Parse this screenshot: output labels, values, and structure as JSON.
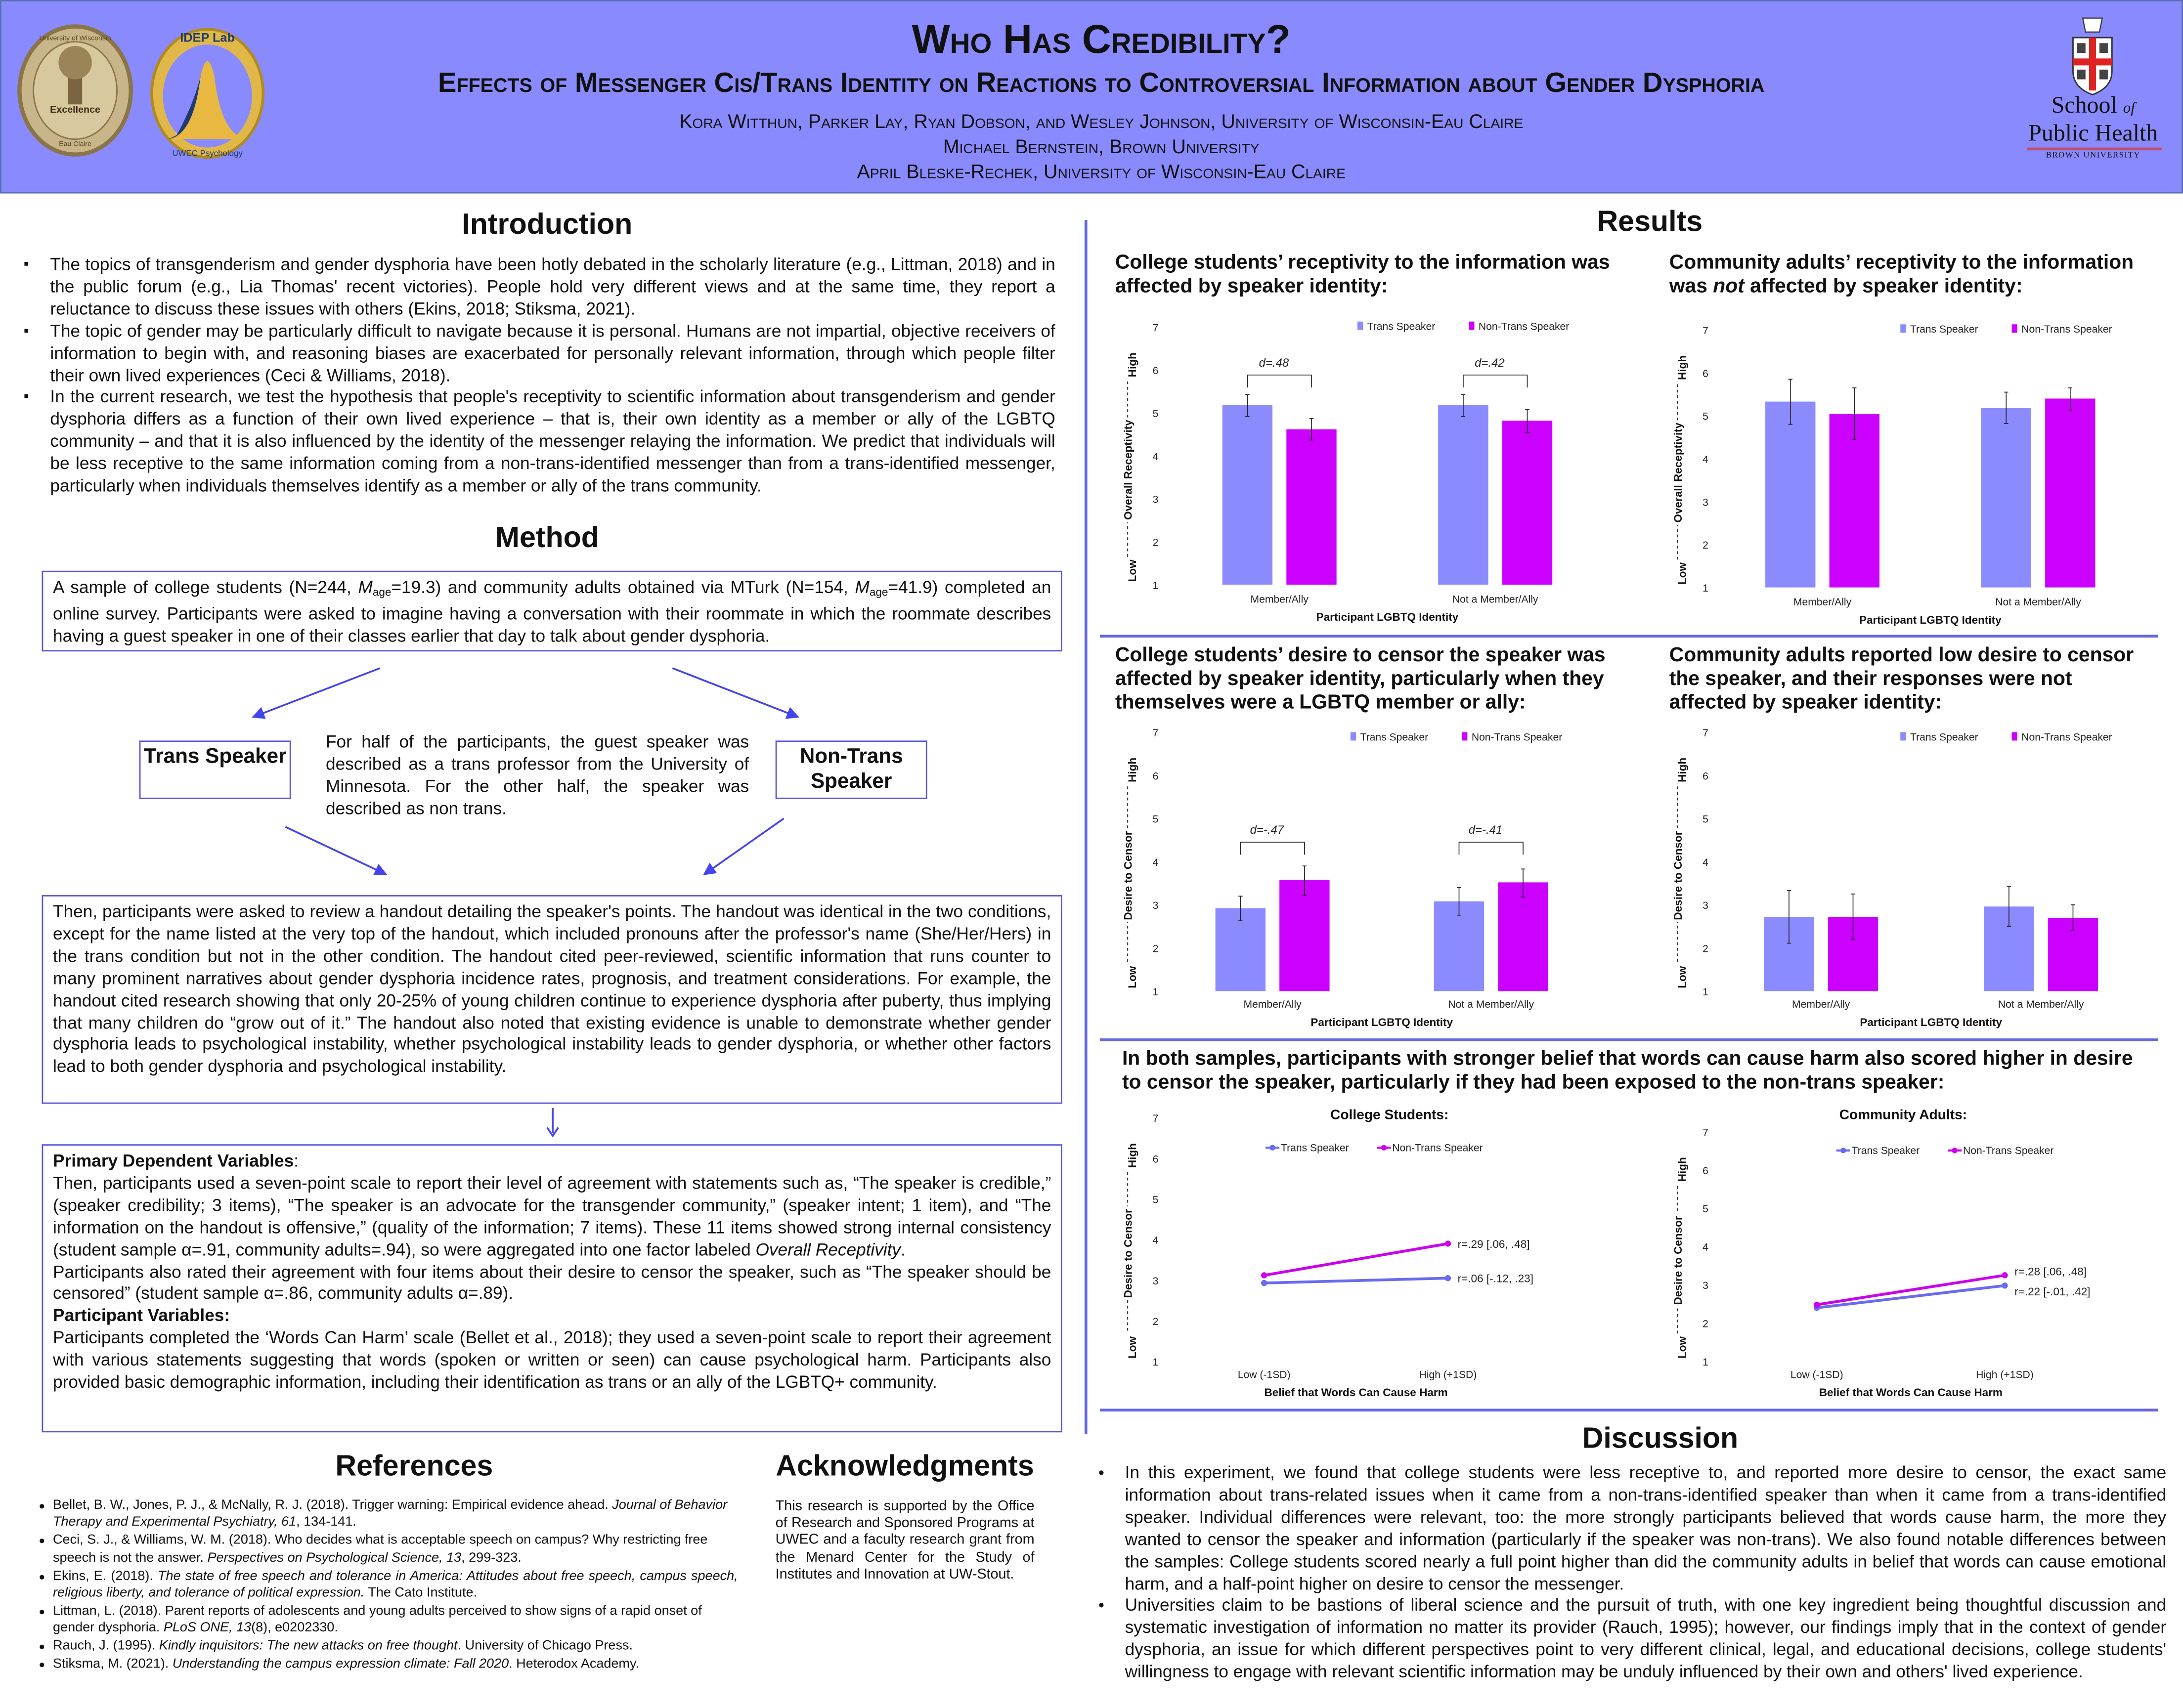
{
  "header": {
    "title": "Who Has Credibility?",
    "subtitle": "Effects of Messenger Cis/Trans Identity on Reactions to Controversial Information about Gender Dysphoria",
    "authors_line1": "Kora Witthun, Parker Lay, Ryan Dobson, and Wesley Johnson, University of Wisconsin-Eau Claire",
    "authors_line2": "Michael Bernstein, Brown University",
    "authors_line3": "April Bleske-Rechek, University of Wisconsin-Eau Claire",
    "logo_uwec": {
      "ring_text": "University of Wisconsin",
      "center_text": "Excellence",
      "bottom_text": "Eau Claire"
    },
    "logo_idep": {
      "top_text": "IDEP Lab",
      "bottom_text": "UWEC Psychology"
    },
    "logo_brown": {
      "school": "School",
      "of": "of",
      "public_health": "Public Health",
      "university": "BROWN UNIVERSITY"
    }
  },
  "introduction": {
    "heading": "Introduction",
    "bullets": [
      "The topics of transgenderism and gender dysphoria have been hotly debated in the scholarly literature (e.g., Littman, 2018) and in the public forum (e.g., Lia Thomas' recent victories). People hold very different views and at the same time, they report a reluctance to discuss these issues with others (Ekins, 2018; Stiksma, 2021).",
      "The topic of gender may be particularly difficult to navigate because it is personal. Humans are not impartial, objective receivers of information to begin with, and reasoning biases are exacerbated for personally relevant information, through which people filter their own lived experiences (Ceci & Williams, 2018).",
      "In the current research, we test the hypothesis that people's receptivity to scientific information about transgenderism and gender dysphoria differs as a function of their own lived experience – that is, their own identity as a member or ally of the LGBTQ community – and that it is also influenced by the identity of the messenger relaying the information. We predict that individuals will be less receptive to the same information coming from a non-trans-identified messenger than from a trans-identified messenger, particularly when individuals themselves identify as a member or ally of the trans community."
    ]
  },
  "method": {
    "heading": "Method",
    "box1": {
      "a": "A sample of college students (N=244, ",
      "m": "M",
      "age": "age",
      "b": "=19.3) and community adults obtained via MTurk (N=154, ",
      "c": "=41.9) completed an online survey. Participants were asked to imagine having a conversation with their roommate in which the roommate describes having a guest speaker in one of their classes earlier that day to talk about gender dysphoria."
    },
    "trans_speaker": "Trans Speaker",
    "nontrans_speaker": "Non-Trans Speaker",
    "condition_text": "For half of the participants, the guest speaker was described as a trans professor from the University of Minnesota. For the other half, the speaker was described as non trans.",
    "box2": "Then, participants were asked to review a handout detailing the speaker's points. The handout was identical in the two conditions, except for the name listed at the very top of the handout, which included pronouns after the professor's name (She/Her/Hers) in the trans condition but not in the other condition. The handout cited peer-reviewed, scientific information that runs counter to many prominent narratives about gender dysphoria incidence rates, prognosis, and treatment considerations. For example, the handout cited research showing that only 20-25% of young children continue to experience dysphoria after puberty, thus implying that many children do “grow out of it.” The handout also noted that existing evidence is unable to demonstrate whether gender dysphoria leads to psychological instability, whether psychological instability leads to gender dysphoria, or whether other factors lead to both gender dysphoria and psychological instability.",
    "box3": {
      "primary_heading": "Primary Dependent Variables",
      "colon": ":",
      "p1": "Then, participants used a seven-point scale to report their level of agreement with statements such as, “The speaker is credible,” (speaker credibility; 3 items), “The speaker is an advocate for the transgender community,” (speaker intent; 1 item), and “The information on the handout is offensive,” (quality of the information; 7 items). These 11 items showed strong internal consistency (student sample α=.91, community adults=.94), so were aggregated into one factor labeled ",
      "p1_italic": "Overall Receptivity",
      "p1_end": ".",
      "p2": "Participants also rated their agreement with four items about their desire to censor the speaker, such as “The speaker should be censored” (student sample α=.86, community adults α=.89).",
      "participant_heading": "Participant Variables:",
      "p3": "Participants  completed the ‘Words Can Harm’ scale (Bellet et al., 2018); they used a seven-point scale to report their agreement with various statements suggesting that words (spoken or written or seen) can cause psychological harm. Participants also provided basic demographic information, including their identification as trans or an ally of the LGBTQ+ community."
    }
  },
  "references": {
    "heading": "References",
    "items": [
      {
        "a": "Bellet, B. W., Jones, P. J., & McNally, R. J. (2018). Trigger warning: Empirical evidence ahead. ",
        "i": "Journal of Behavior Therapy and Experimental Psychiatry, 61",
        "b": ", 134-141."
      },
      {
        "a": "Ceci, S. J., & Williams, W. M. (2018). Who decides what is acceptable speech on campus? Why restricting free speech is not the answer. ",
        "i": "Perspectives on Psychological Science, 13",
        "b": ", 299-323."
      },
      {
        "a": "Ekins, E. (2018). ",
        "i": "The state of free speech and tolerance in America: Attitudes about free speech, campus speech, religious liberty, and tolerance of political expression.",
        "b": " The Cato Institute."
      },
      {
        "a": "Littman, L. (2018). Parent reports of adolescents and young adults perceived to show signs of a rapid onset of gender dysphoria. ",
        "i": "PLoS ONE, 13",
        "b": "(8), e0202330."
      },
      {
        "a": "Rauch, J. (1995). ",
        "i": "Kindly inquisitors: The new attacks on free thought",
        "b": ". University of Chicago Press."
      },
      {
        "a": "Stiksma, M. (2021). ",
        "i": "Understanding the campus expression climate: Fall 2020",
        "b": ". Heterodox Academy."
      }
    ]
  },
  "acknowledgments": {
    "heading": "Acknowledgments",
    "text": "This research is supported by the Office of Research and Sponsored Programs at UWEC and a faculty research grant from the Menard Center for the Study of Institutes and Innovation at UW-Stout."
  },
  "results": {
    "heading": "Results",
    "titles": [
      {
        "a": "College students’ receptivity to the information was affected by speaker identity:"
      },
      {
        "a": "Community adults’ receptivity to the information was ",
        "i": "not",
        "b": " affected by speaker identity:"
      },
      {
        "a": "College students’ desire to censor the speaker was affected by speaker identity, particularly when they themselves were a LGBTQ member or ally:"
      },
      {
        "a": "Community adults reported low desire to censor the speaker, and their responses were not affected by speaker identity:"
      },
      {
        "a": "In both samples, participants with stronger belief that words can cause harm also scored higher in desire to censor the speaker, particularly if they had been exposed to the non-trans speaker:"
      }
    ]
  },
  "discussion": {
    "heading": "Discussion",
    "bullets": [
      "In this experiment, we found that college students were less receptive to, and reported more desire to censor, the exact same information about trans-related issues when it came from a non-trans-identified speaker than when it came from a trans-identified speaker. Individual differences were relevant, too: the more strongly participants believed that words cause harm, the more they wanted to censor the speaker and information (particularly if the speaker was non-trans). We also found notable differences between the samples: College students scored nearly a full point higher than did the community adults in belief that words can cause emotional harm, and a half-point higher on desire to censor the messenger.",
      "Universities claim to be bastions of liberal science and the pursuit of truth, with one key ingredient being thoughtful discussion and systematic investigation of information no matter its provider (Rauch, 1995); however, our findings imply that in the context of gender dysphoria, an issue for which different perspectives point to very different clinical, legal, and educational decisions, college students' willingness to engage with relevant scientific information may be unduly influenced by their own and others' lived experience."
    ]
  },
  "colors": {
    "trans": "#8b8bff",
    "nontrans": "#cc00ff",
    "trans_line": "#6a6af0",
    "nontrans_line": "#cc00ee",
    "header_bg": "#8a8aff",
    "accent": "#6464e6"
  },
  "chart_data": [
    {
      "type": "bar",
      "title": "College students receptivity",
      "ylabel": "Overall Receptivity",
      "ylow": "Low",
      "yhigh": "High",
      "xlabel": "Participant LGBTQ Identity",
      "categories": [
        "Member/Ally",
        "Not a Member/Ally"
      ],
      "yticks": [
        "1",
        "2",
        "3",
        "4",
        "5",
        "6",
        "7"
      ],
      "ylim": [
        1,
        7
      ],
      "series": [
        {
          "name": "Trans Speaker",
          "values": [
            5.18,
            5.18
          ],
          "err_low": [
            4.92,
            4.92
          ],
          "err_high": [
            5.43,
            5.43
          ]
        },
        {
          "name": "Non-Trans Speaker",
          "values": [
            4.62,
            4.82
          ],
          "err_low": [
            4.37,
            4.54
          ],
          "err_high": [
            4.87,
            5.08
          ]
        }
      ],
      "annotations": [
        "d=.48",
        "d=.42"
      ]
    },
    {
      "type": "bar",
      "title": "Community adults receptivity",
      "ylabel": "Overall Receptivity",
      "ylow": "Low",
      "yhigh": "High",
      "xlabel": "Participant LGBTQ Identity",
      "categories": [
        "Member/Ally",
        "Not a Member/Ally"
      ],
      "yticks": [
        "1",
        "2",
        "3",
        "4",
        "5",
        "6",
        "7"
      ],
      "ylim": [
        1,
        7
      ],
      "series": [
        {
          "name": "Trans Speaker",
          "values": [
            5.33,
            5.18
          ],
          "err_low": [
            4.8,
            4.82
          ],
          "err_high": [
            5.85,
            5.55
          ]
        },
        {
          "name": "Non-Trans Speaker",
          "values": [
            5.04,
            5.4
          ],
          "err_low": [
            4.45,
            5.13
          ],
          "err_high": [
            5.65,
            5.65
          ]
        }
      ],
      "annotations": []
    },
    {
      "type": "bar",
      "title": "College students desire to censor",
      "ylabel": "Desire to Censor",
      "ylow": "Low",
      "yhigh": "High",
      "xlabel": "Participant LGBTQ Identity",
      "categories": [
        "Member/Ally",
        "Not a Member/Ally"
      ],
      "yticks": [
        "1",
        "2",
        "3",
        "4",
        "5",
        "6",
        "7"
      ],
      "ylim": [
        1,
        7
      ],
      "series": [
        {
          "name": "Trans Speaker",
          "values": [
            2.92,
            3.08
          ],
          "err_low": [
            2.63,
            2.76
          ],
          "err_high": [
            3.2,
            3.4
          ]
        },
        {
          "name": "Non-Trans Speaker",
          "values": [
            3.57,
            3.52
          ],
          "err_low": [
            3.22,
            3.18
          ],
          "err_high": [
            3.9,
            3.83
          ]
        }
      ],
      "annotations": [
        "d=-.47",
        "d=-.41"
      ]
    },
    {
      "type": "bar",
      "title": "Community adults desire to censor",
      "ylabel": "Desire to Censor",
      "ylow": "Low",
      "yhigh": "High",
      "xlabel": "Participant LGBTQ Identity",
      "categories": [
        "Member/Ally",
        "Not a Member/Ally"
      ],
      "yticks": [
        "1",
        "2",
        "3",
        "4",
        "5",
        "6",
        "7"
      ],
      "ylim": [
        1,
        7
      ],
      "series": [
        {
          "name": "Trans Speaker",
          "values": [
            2.72,
            2.96
          ],
          "err_low": [
            2.11,
            2.5
          ],
          "err_high": [
            3.33,
            3.43
          ]
        },
        {
          "name": "Non-Trans Speaker",
          "values": [
            2.72,
            2.7
          ],
          "err_low": [
            2.2,
            2.4
          ],
          "err_high": [
            3.25,
            3.0
          ]
        }
      ],
      "annotations": []
    },
    {
      "type": "line",
      "title": "College Students:",
      "ylabel": "Desire to Censor",
      "ylow": "Low",
      "yhigh": "High",
      "xlabel": "Belief that Words Can Cause Harm",
      "x": [
        "Low (-1SD)",
        "High (+1SD)"
      ],
      "yticks": [
        "1",
        "2",
        "3",
        "4",
        "5",
        "6",
        "7"
      ],
      "ylim": [
        1,
        7
      ],
      "series": [
        {
          "name": "Trans Speaker",
          "values": [
            2.93,
            3.05
          ],
          "label": "r=.06 [-.12, .23]"
        },
        {
          "name": "Non-Trans Speaker",
          "values": [
            3.12,
            3.9
          ],
          "label": "r=.29 [.06, .48]"
        }
      ]
    },
    {
      "type": "line",
      "title": "Community Adults:",
      "ylabel": "Desire to Censor",
      "ylow": "Low",
      "yhigh": "High",
      "xlabel": "Belief that Words Can Cause Harm",
      "x": [
        "Low (-1SD)",
        "High (+1SD)"
      ],
      "yticks": [
        "1",
        "2",
        "3",
        "4",
        "5",
        "6",
        "7"
      ],
      "ylim": [
        1,
        7
      ],
      "series": [
        {
          "name": "Trans Speaker",
          "values": [
            2.4,
            2.98
          ],
          "label": "r=.22 [-.01, .42]"
        },
        {
          "name": "Non-Trans Speaker",
          "values": [
            2.48,
            3.25
          ],
          "label": "r=.28 [.06, .48]"
        }
      ]
    }
  ]
}
